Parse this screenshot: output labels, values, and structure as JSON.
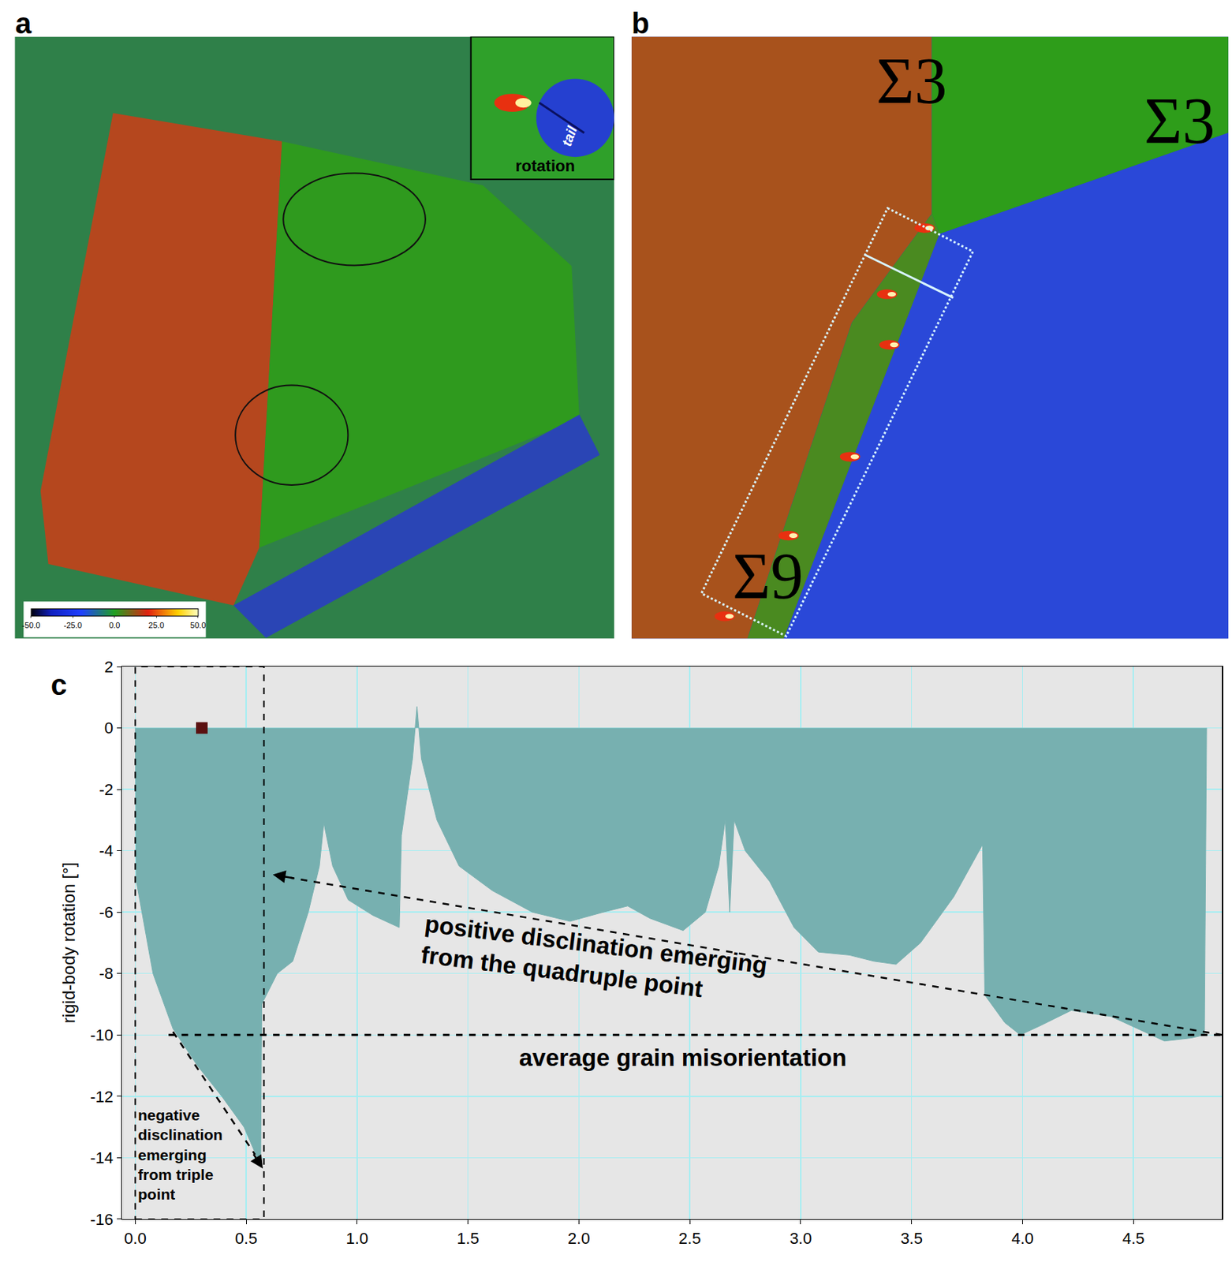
{
  "panel_labels": [
    "a",
    "b",
    "c"
  ],
  "image_a": {
    "inset_texts": [
      "tail",
      "rotation"
    ],
    "colorbar": {
      "range": [
        -50,
        50
      ],
      "ticks": [
        {
          "value": -50,
          "label": "-50.0"
        },
        {
          "value": -25,
          "label": "-25.0"
        },
        {
          "value": 0,
          "label": "0.0"
        },
        {
          "value": 25,
          "label": "25.0"
        },
        {
          "value": 50,
          "label": "50.0"
        }
      ]
    }
  },
  "image_b": {
    "labels": [
      "Σ3",
      "Σ3",
      "Σ9"
    ]
  },
  "chart_data": {
    "type": "area",
    "y_label": "rigid-body rotation [°]",
    "color": "#77b0b0",
    "grid": true,
    "xlim": [
      -0.06,
      4.9
    ],
    "ylim": [
      -16,
      2
    ],
    "xticks": [
      {
        "value": 0,
        "label": "0.0"
      },
      {
        "value": 0.5,
        "label": "0.5"
      },
      {
        "value": 1,
        "label": "1.0"
      },
      {
        "value": 1.5,
        "label": "1.5"
      },
      {
        "value": 2,
        "label": "2.0"
      },
      {
        "value": 2.5,
        "label": "2.5"
      },
      {
        "value": 3,
        "label": "3.0"
      },
      {
        "value": 3.5,
        "label": "3.5"
      },
      {
        "value": 4,
        "label": "4.0"
      },
      {
        "value": 4.5,
        "label": "4.5"
      }
    ],
    "yticks": [
      -16,
      -14,
      -12,
      -10,
      -8,
      -6,
      -4,
      -2,
      0,
      2
    ],
    "x": [
      0,
      0.005,
      0.03,
      0.08,
      0.17,
      0.28,
      0.39,
      0.49,
      0.55,
      0.565,
      0.57,
      0.64,
      0.71,
      0.78,
      0.83,
      0.85,
      0.89,
      0.96,
      1.07,
      1.19,
      1.2,
      1.25,
      1.27,
      1.29,
      1.36,
      1.46,
      1.61,
      1.79,
      1.96,
      2.11,
      2.22,
      2.32,
      2.47,
      2.57,
      2.63,
      2.66,
      2.68,
      2.7,
      2.75,
      2.86,
      2.97,
      3.08,
      3.22,
      3.33,
      3.43,
      3.54,
      3.69,
      3.79,
      3.82,
      3.83,
      3.92,
      3.99,
      4.08,
      4.22,
      4.4,
      4.55,
      4.64,
      4.76,
      4.82,
      4.83
    ],
    "values": [
      0,
      -5,
      -6,
      -8,
      -9.8,
      -11,
      -12,
      -13,
      -14,
      -14.3,
      -9,
      -8,
      -7.6,
      -6,
      -4.5,
      -3.1,
      -4.5,
      -5.6,
      -6.1,
      -6.5,
      -3.5,
      -1,
      0.7,
      -1,
      -3,
      -4.5,
      -5.3,
      -6,
      -6.3,
      -6,
      -5.8,
      -6.2,
      -6.6,
      -6,
      -4.5,
      -3,
      -6,
      -3,
      -4,
      -5,
      -6.5,
      -7.3,
      -7.4,
      -7.6,
      -7.7,
      -7,
      -5.5,
      -4.2,
      -3.8,
      -8.7,
      -9.6,
      -10,
      -9.7,
      -9.2,
      -9.4,
      -9.9,
      -10.2,
      -10.1,
      -10,
      0
    ],
    "marker_point": {
      "x": 0.3,
      "y": 0,
      "marker": "square",
      "color": "#5a1010"
    },
    "region": [
      0,
      0.58
    ],
    "reference_line": {
      "value": -10,
      "x_range": [
        0.15,
        4.9
      ],
      "label": "average grain misorientation"
    },
    "annotations": {
      "positive": [
        "positive disclination emerging",
        "from the quadruple point"
      ],
      "negative": [
        "negative",
        "disclination",
        "emerging",
        "from triple",
        "point"
      ]
    }
  }
}
